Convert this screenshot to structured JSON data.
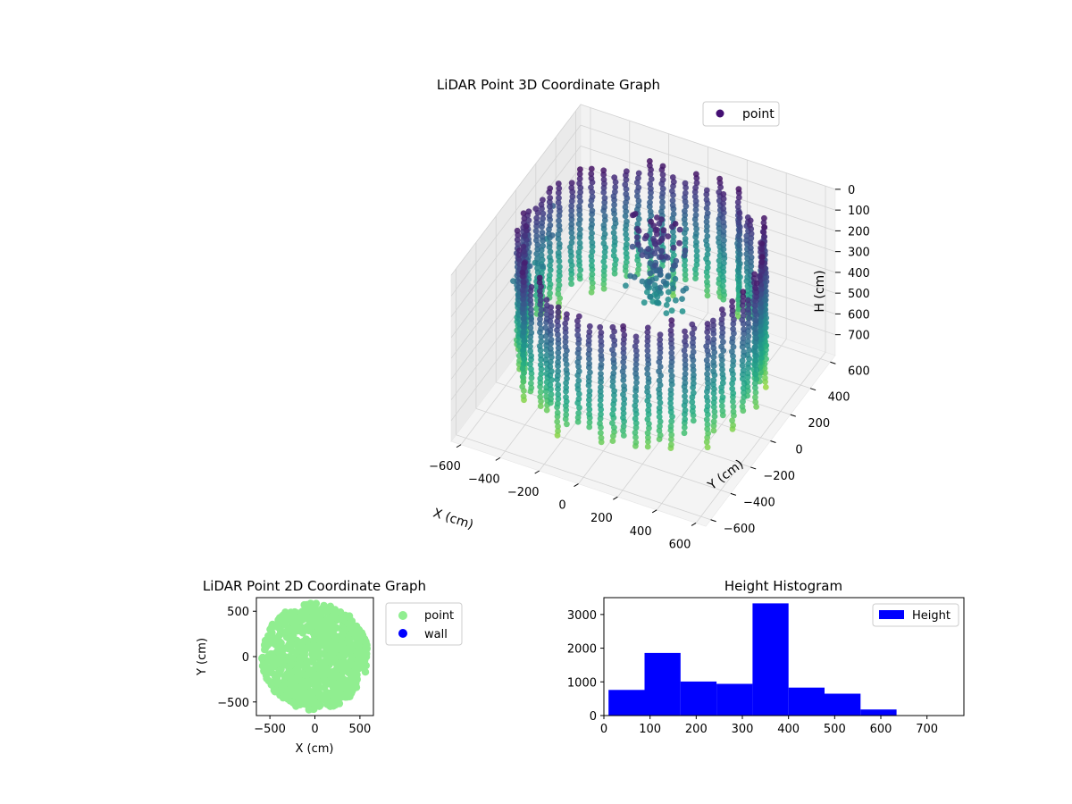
{
  "colors": {
    "scatter2d": "#90ee90",
    "wall": "#0000ff",
    "hist": "#0000ff"
  },
  "chart_data": [
    {
      "type": "scatter",
      "projection": "3d",
      "title": "LiDAR Point 3D Coordinate Graph",
      "xlabel": "X (cm)",
      "ylabel": "Y (cm)",
      "zlabel": "H (cm)",
      "xlim": [
        -650,
        650
      ],
      "ylim": [
        -650,
        650
      ],
      "zlim": [
        800,
        0
      ],
      "xticks": [
        -600,
        -400,
        -200,
        0,
        200,
        400,
        600
      ],
      "yticks": [
        -600,
        -400,
        -200,
        0,
        200,
        400,
        600
      ],
      "zticks": [
        0,
        100,
        200,
        300,
        400,
        500,
        600,
        700
      ],
      "legend": [
        "point"
      ],
      "legend_position": "top-right",
      "colormap": "viridis",
      "series": [
        {
          "name": "point",
          "shape": "cylindrical wall of points around the sensor, radius ~560 cm, heights 0-720 cm"
        }
      ]
    },
    {
      "type": "scatter",
      "title": "LiDAR Point 2D Coordinate Graph",
      "xlabel": "X (cm)",
      "ylabel": "Y (cm)",
      "xlim": [
        -650,
        650
      ],
      "ylim": [
        -650,
        650
      ],
      "xticks": [
        -500,
        0,
        500
      ],
      "yticks": [
        -500,
        0,
        500
      ],
      "legend": [
        "point",
        "wall"
      ],
      "legend_position": "outside-right",
      "series": [
        {
          "name": "point",
          "color": "#90ee90",
          "shape": "filled disc, radius ~590 cm"
        },
        {
          "name": "wall",
          "color": "#0000ff",
          "points": []
        }
      ]
    },
    {
      "type": "bar",
      "title": "Height Histogram",
      "xlim": [
        0,
        780
      ],
      "ylim": [
        0,
        3500
      ],
      "xticks": [
        0,
        100,
        200,
        300,
        400,
        500,
        600,
        700
      ],
      "yticks": [
        0,
        1000,
        2000,
        3000
      ],
      "legend": [
        "Height"
      ],
      "legend_position": "top-right",
      "bin_edges": [
        10,
        88,
        166,
        244,
        322,
        400,
        478,
        556,
        634,
        712,
        790
      ],
      "values": [
        760,
        1860,
        1010,
        940,
        3330,
        830,
        650,
        180,
        0,
        0
      ],
      "series": [
        {
          "name": "Height",
          "values": [
            760,
            1860,
            1010,
            940,
            3330,
            830,
            650,
            180,
            0,
            0
          ]
        }
      ]
    }
  ]
}
